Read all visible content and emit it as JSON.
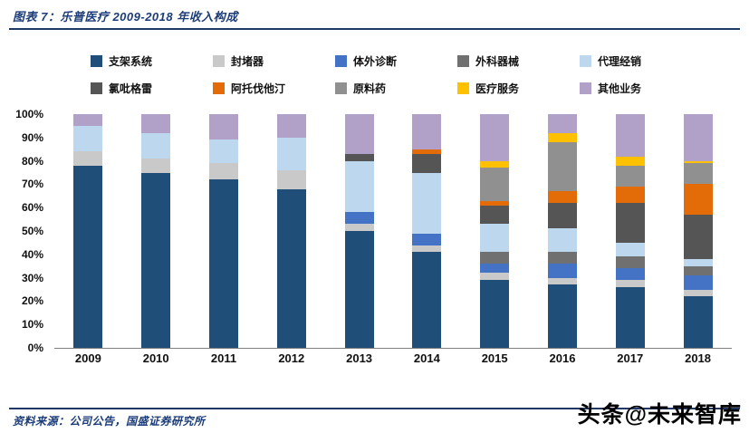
{
  "header": {
    "title": "图表 7：乐普医疗 2009-2018 年收入构成"
  },
  "footer": {
    "source": "资料来源：公司公告，国盛证券研究所",
    "watermark": "头条@未来智库"
  },
  "colors": {
    "rule": "#1f3864",
    "title_text": "#1b3c78"
  },
  "chart_data": {
    "type": "bar",
    "stacked": true,
    "percent_stacked": true,
    "title": "乐普医疗 2009-2018 年收入构成",
    "xlabel": "",
    "ylabel": "",
    "ylim": [
      0,
      100
    ],
    "grid": false,
    "legend_position": "top",
    "y_ticks": [
      "100%",
      "90%",
      "80%",
      "70%",
      "60%",
      "50%",
      "40%",
      "30%",
      "20%",
      "10%",
      "0%"
    ],
    "categories": [
      "2009",
      "2010",
      "2011",
      "2012",
      "2013",
      "2014",
      "2015",
      "2016",
      "2017",
      "2018"
    ],
    "series": [
      {
        "name": "支架系统",
        "color": "#1f4e79",
        "values": [
          78,
          75,
          72,
          68,
          50,
          41,
          29,
          27,
          26,
          22
        ]
      },
      {
        "name": "封堵器",
        "color": "#c9c9c9",
        "values": [
          6,
          6,
          7,
          8,
          3,
          3,
          3,
          3,
          3,
          3
        ]
      },
      {
        "name": "体外诊断",
        "color": "#4472c4",
        "values": [
          0,
          0,
          0,
          0,
          5,
          5,
          4,
          6,
          5,
          6
        ]
      },
      {
        "name": "外科器械",
        "color": "#707070",
        "values": [
          0,
          0,
          0,
          0,
          0,
          0,
          5,
          5,
          5,
          4
        ]
      },
      {
        "name": "代理经销",
        "color": "#bdd7ee",
        "values": [
          11,
          11,
          10,
          14,
          22,
          26,
          12,
          10,
          6,
          3
        ]
      },
      {
        "name": "氯吡格雷",
        "color": "#555555",
        "values": [
          0,
          0,
          0,
          0,
          3,
          8,
          8,
          11,
          17,
          19
        ]
      },
      {
        "name": "阿托伐他汀",
        "color": "#e36c09",
        "values": [
          0,
          0,
          0,
          0,
          0,
          2,
          2,
          5,
          7,
          13
        ]
      },
      {
        "name": "原料药",
        "color": "#909090",
        "values": [
          0,
          0,
          0,
          0,
          0,
          0,
          14,
          21,
          9,
          9
        ]
      },
      {
        "name": "医疗服务",
        "color": "#ffc000",
        "values": [
          0,
          0,
          0,
          0,
          0,
          0,
          3,
          4,
          4,
          1
        ]
      },
      {
        "name": "其他业务",
        "color": "#b1a0c7",
        "values": [
          5,
          8,
          11,
          10,
          17,
          15,
          20,
          8,
          18,
          20
        ]
      }
    ]
  }
}
